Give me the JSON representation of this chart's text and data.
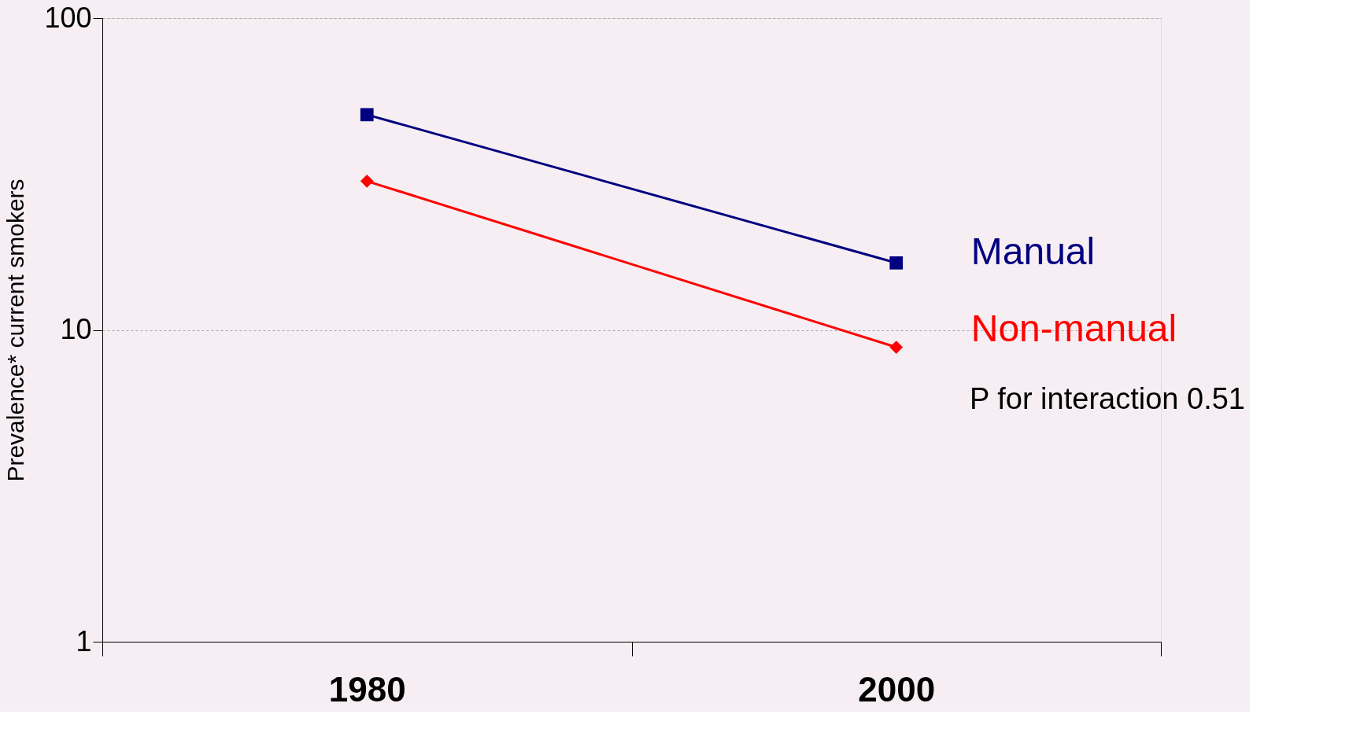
{
  "chart_data": {
    "type": "line",
    "ylabel": "Prevalence* current smokers",
    "categories": [
      "1980",
      "2000"
    ],
    "series": [
      {
        "name": "Manual",
        "color": "#000080",
        "values": [
          49,
          16.4
        ],
        "marker": "square"
      },
      {
        "name": "Non-manual",
        "color": "#ff0000",
        "values": [
          30,
          8.8
        ],
        "marker": "diamond"
      }
    ],
    "log": true,
    "ylim": [
      1,
      100
    ],
    "yticks": [
      1,
      10,
      100
    ],
    "grid": "y",
    "annotations": [
      "P for interaction 0.51"
    ]
  }
}
